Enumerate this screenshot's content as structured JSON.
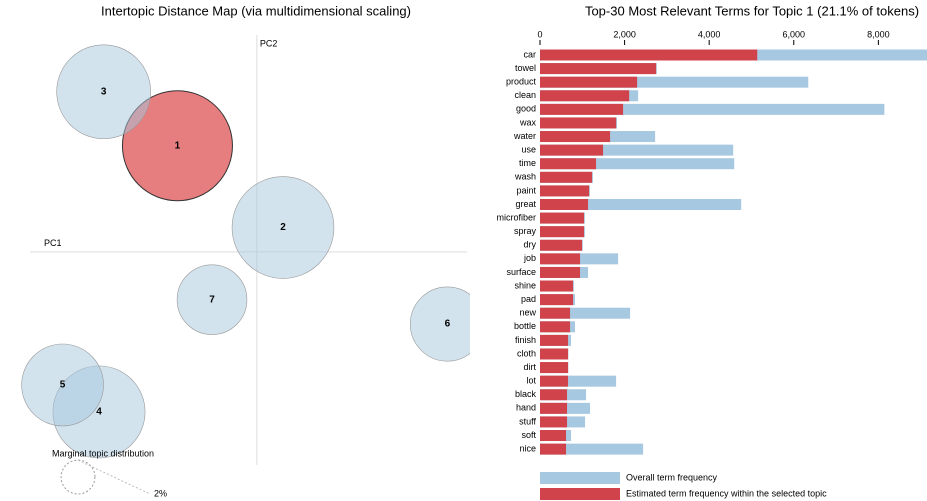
{
  "chart_data": [
    {
      "type": "bubble",
      "title": "Intertopic Distance Map (via multidimensional scaling)",
      "x_label": "PC1",
      "y_label": "PC2",
      "labels": [
        "1",
        "2",
        "3",
        "4",
        "5",
        "6",
        "7"
      ],
      "x": [
        -0.085,
        0.028,
        -0.164,
        -0.169,
        -0.208,
        0.204,
        -0.048
      ],
      "y": [
        0.122,
        0.028,
        0.184,
        -0.184,
        -0.153,
        -0.083,
        -0.055
      ],
      "sizes": [
        21.1,
        18.1,
        15.4,
        14.8,
        11.7,
        9.6,
        8.5
      ],
      "xlim": [
        -0.275,
        0.225
      ],
      "ylim": [
        -0.245,
        0.255
      ],
      "color": "#a6c8dd",
      "selected_color": "#d62728",
      "selected": "1",
      "size_legend_title": "Marginal topic distribution",
      "size_legend": [
        {
          "value": 2,
          "label": "2%"
        }
      ]
    },
    {
      "type": "hbar",
      "title": "Top-30 Most Relevant Terms for Topic 1 (21.1% of tokens)",
      "categories": [
        "car",
        "towel",
        "product",
        "clean",
        "good",
        "wax",
        "water",
        "use",
        "time",
        "wash",
        "paint",
        "great",
        "microfiber",
        "spray",
        "dry",
        "job",
        "surface",
        "shine",
        "pad",
        "new",
        "bottle",
        "finish",
        "cloth",
        "dirt",
        "lot",
        "black",
        "hand",
        "stuff",
        "soft",
        "nice"
      ],
      "series": [
        {
          "name": "Overall term frequency",
          "color": "#a6c8e0",
          "values": [
            9500,
            2760,
            6343,
            2320,
            8142,
            1820,
            2722,
            4568,
            4592,
            1250,
            1180,
            4757,
            1060,
            1060,
            1010,
            1846,
            1136,
            800,
            828,
            2130,
            828,
            734,
            670,
            670,
            1799,
            1089,
            1183,
            1065,
            734,
            2438
          ]
        },
        {
          "name": "Estimated term frequency within the selected topic",
          "color": "#d0434b",
          "values": [
            5136,
            2745,
            2296,
            2107,
            1964,
            1800,
            1657,
            1491,
            1325,
            1231,
            1160,
            1136,
            1041,
            1041,
            994,
            947,
            947,
            781,
            781,
            710,
            710,
            663,
            663,
            663,
            663,
            639,
            639,
            639,
            615,
            615
          ]
        }
      ],
      "xlim": [
        0,
        9150
      ],
      "xticks": [
        0,
        {
          "value": 2000,
          "label": "2,000"
        },
        {
          "value": 4000,
          "label": "4,000"
        },
        {
          "value": 6000,
          "label": "6,000"
        },
        {
          "value": 8000,
          "label": "8,000"
        }
      ]
    }
  ]
}
